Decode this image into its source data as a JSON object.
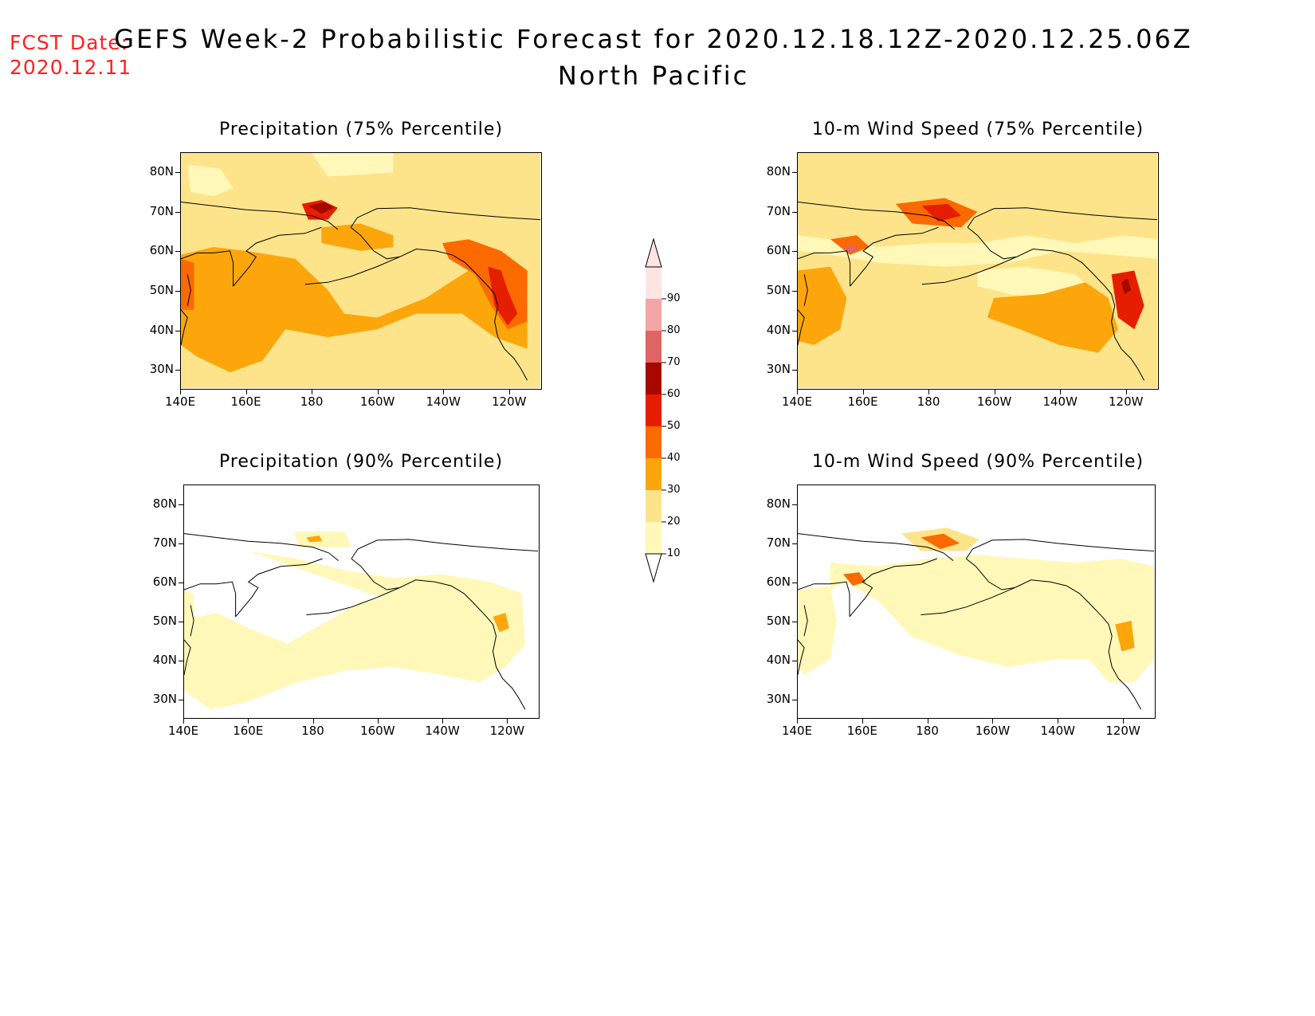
{
  "header": {
    "fcst_label": "FCST Date:",
    "fcst_date": "2020.12.11",
    "title": "GEFS Week-2 Probabilistic Forecast for 2020.12.18.12Z-2020.12.25.06Z",
    "subtitle": "North Pacific"
  },
  "axes": {
    "lat_labels": [
      "80N",
      "70N",
      "60N",
      "50N",
      "40N",
      "30N"
    ],
    "lon_labels": [
      "140E",
      "160E",
      "180",
      "160W",
      "140W",
      "120W"
    ]
  },
  "panels": [
    {
      "id": "precip75",
      "title": "Precipitation (75% Percentile)"
    },
    {
      "id": "wind75",
      "title": "10-m Wind Speed (75% Percentile)"
    },
    {
      "id": "precip90",
      "title": "Precipitation (90% Percentile)"
    },
    {
      "id": "wind90",
      "title": "10-m Wind Speed (90% Percentile)"
    }
  ],
  "colorbar": {
    "levels": [
      "10",
      "20",
      "30",
      "40",
      "50",
      "60",
      "70",
      "80",
      "90"
    ],
    "colors": [
      "#fff8b8",
      "#fde48a",
      "#fca60c",
      "#fb6a00",
      "#e61e00",
      "#a60800",
      "#e06464",
      "#f4a6a6",
      "#ffe4e4"
    ]
  }
}
